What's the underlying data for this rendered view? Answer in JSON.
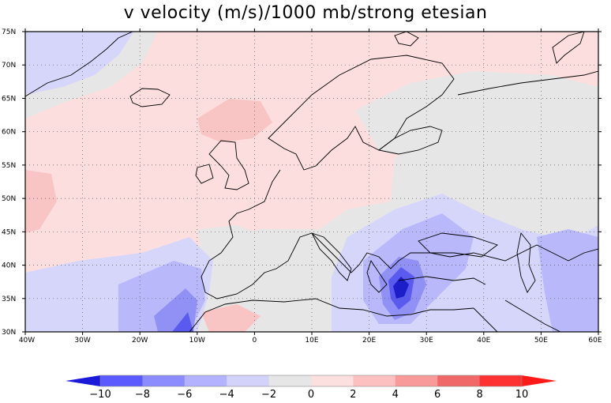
{
  "title": "v velocity (m/s)/1000 mb/strong etesian",
  "lon_labels": [
    "40W",
    "30W",
    "20W",
    "10W",
    "0",
    "10E",
    "20E",
    "30E",
    "40E",
    "50E",
    "60E"
  ],
  "lat_labels": [
    "30N",
    "35N",
    "40N",
    "45N",
    "50N",
    "55N",
    "60N",
    "65N",
    "70N",
    "75N"
  ],
  "colorbar": {
    "labels": [
      "-10",
      "-8",
      "-6",
      "-4",
      "-2",
      "0",
      "2",
      "4",
      "6",
      "8",
      "10"
    ],
    "colors": [
      "#5a5aff",
      "#8c8cff",
      "#b2b2ff",
      "#d2d2fa",
      "#e6e6e6",
      "#fce0e0",
      "#fcc0c0",
      "#f89a9a",
      "#f06868",
      "#ff3232"
    ],
    "neg_arrow_color": "#1a1ad8",
    "pos_arrow_color": "#ff1a1a"
  },
  "map_colors": {
    "neutral": "#e6e6e6",
    "pos1": "#fcdede",
    "pos2": "#f9c4c4",
    "pos3": "#f59e9e",
    "neg1": "#d6d6fb",
    "neg2": "#b8b8fb",
    "neg3": "#9090f5",
    "neg4": "#5a5aee",
    "neg5": "#1e1ec8"
  }
}
